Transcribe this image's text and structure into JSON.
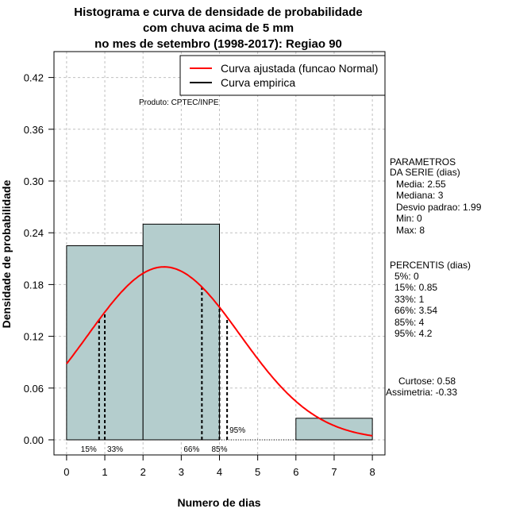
{
  "chart_data": {
    "type": "bar",
    "title": [
      "Histograma e curva de densidade de probabilidade",
      "com chuva acima de 5 mm",
      "no mes de setembro (1998-2017): Regiao 90"
    ],
    "xlabel": "Numero de dias",
    "ylabel": "Densidade de probabilidade",
    "xlim": [
      -0.33,
      8.33
    ],
    "ylim": [
      -0.0175,
      0.45
    ],
    "x_ticks": [
      "0",
      "1",
      "2",
      "3",
      "4",
      "5",
      "6",
      "7",
      "8"
    ],
    "y_ticks": [
      "0.00",
      "0.06",
      "0.12",
      "0.18",
      "0.24",
      "0.30",
      "0.36",
      "0.42"
    ],
    "grid": true,
    "bins": [
      {
        "from": 0,
        "to": 2,
        "density": 0.225
      },
      {
        "from": 2,
        "to": 4,
        "density": 0.25
      },
      {
        "from": 4,
        "to": 6,
        "density": 0.0
      },
      {
        "from": 6,
        "to": 8,
        "density": 0.025
      }
    ],
    "normal_curve": {
      "mean": 2.55,
      "sd": 1.99,
      "from": 0,
      "to": 8
    },
    "percentile_lines": [
      {
        "label": "15%",
        "x": 0.85
      },
      {
        "label": "33%",
        "x": 1
      },
      {
        "label": "66%",
        "x": 3.54
      },
      {
        "label": "85%",
        "x": 4
      },
      {
        "label": "95%",
        "x": 4.2
      }
    ],
    "legend": {
      "position": "top-right",
      "entries": [
        {
          "label": "Curva ajustada (funcao Normal)",
          "color": "#ff0000"
        },
        {
          "label": "Curva empirica",
          "color": "#000000"
        }
      ]
    },
    "product": "Produto: CPTEC/INPE",
    "bar_color": "#b4cdcd",
    "stats": {
      "params_title": [
        "PARAMETROS",
        "DA SERIE (dias)"
      ],
      "params": [
        "Media: 2.55",
        "Mediana: 3",
        "Desvio padrao: 1.99",
        "Min: 0",
        "Max: 8"
      ],
      "perc_title": "PERCENTIS (dias)",
      "percentis": [
        "5%: 0",
        "15%: 0.85",
        "33%: 1",
        "66%: 3.54",
        "85%: 4",
        "95%: 4.2"
      ],
      "curtose": "Curtose: 0.58",
      "assimetria": "Assimetria: -0.33"
    }
  }
}
